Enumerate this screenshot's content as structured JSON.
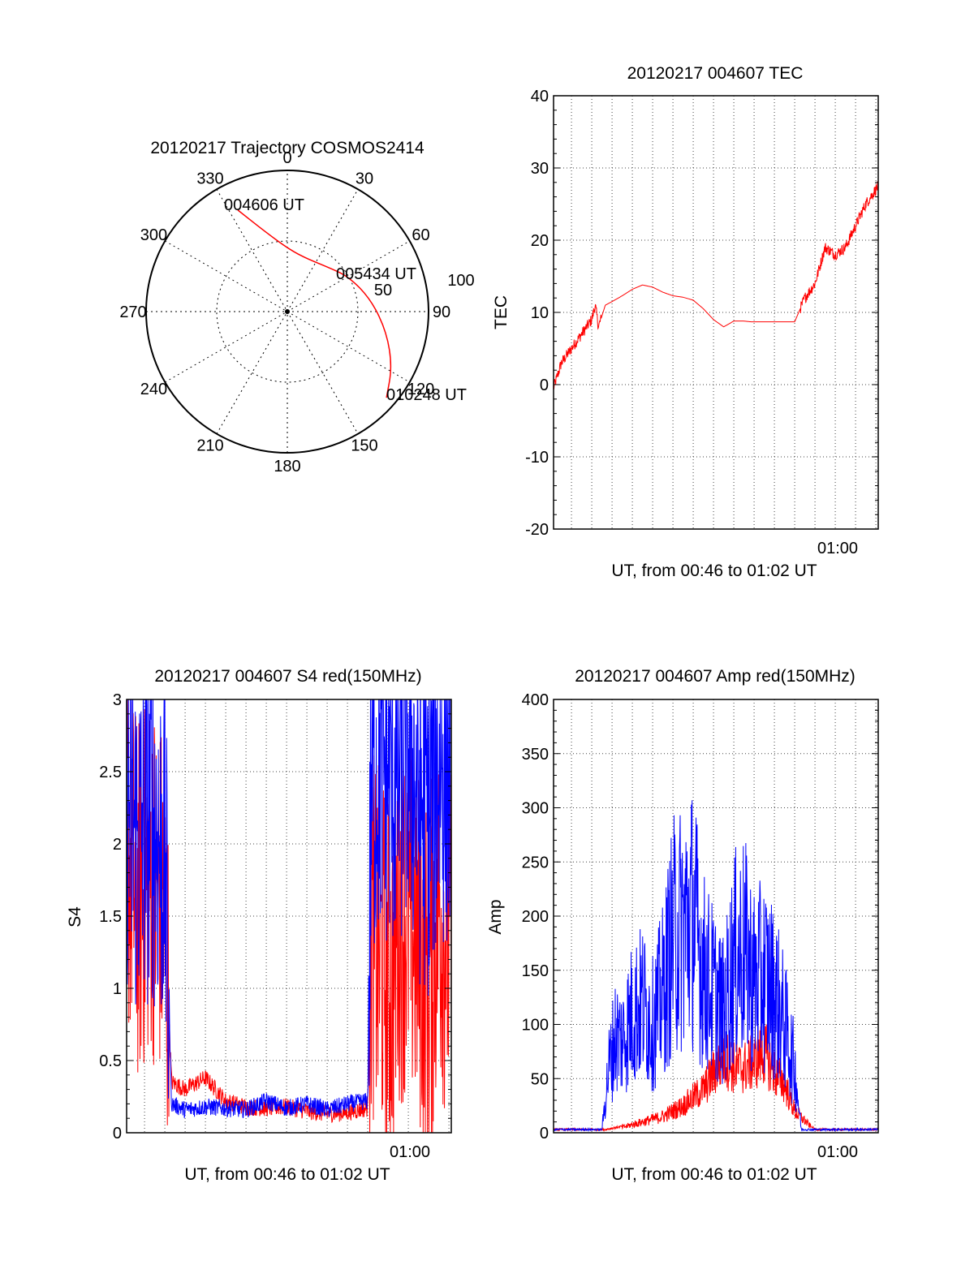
{
  "colors": {
    "red": "#ff0000",
    "blue": "#0000ff",
    "axis": "#000000",
    "grid": "#555555",
    "background": "#ffffff"
  },
  "panels": {
    "trajectory": {
      "title": "20120217 Trajectory COSMOS2414",
      "azimuth_labels": [
        "0",
        "30",
        "60",
        "90",
        "120",
        "150",
        "180",
        "210",
        "240",
        "270",
        "300",
        "330"
      ],
      "elevation_labels": [
        "50",
        "100"
      ],
      "start_label": "004606 UT",
      "mid_label": "005434 UT",
      "end_label": "010248 UT"
    },
    "tec": {
      "title": "20120217 004607 TEC",
      "ylabel": "TEC",
      "xlabel": "UT, from 00:46 to 01:02 UT",
      "xtick": "01:00",
      "yticks": [
        "40",
        "30",
        "20",
        "10",
        "0",
        "-10",
        "-20"
      ]
    },
    "s4": {
      "title": "20120217 004607 S4 red(150MHz)",
      "ylabel": "S4",
      "xlabel": "UT, from 00:46 to 01:02 UT",
      "xtick": "01:00",
      "yticks": [
        "3",
        "2.5",
        "2",
        "1.5",
        "1",
        "0.5",
        "0"
      ]
    },
    "amp": {
      "title": "20120217 004607 Amp red(150MHz)",
      "ylabel": "Amp",
      "xlabel": "UT, from 00:46 to 01:02 UT",
      "xtick": "01:00",
      "yticks": [
        "400",
        "350",
        "300",
        "250",
        "200",
        "150",
        "100",
        "50",
        "0"
      ]
    }
  },
  "chart_data": [
    {
      "type": "scatter",
      "subtype": "polar-trajectory",
      "title": "20120217 Trajectory COSMOS2414",
      "angle_unit": "azimuth degrees (0 at top, clockwise)",
      "radius_unit": "zenith distance, 0 at centre to 100 at edge",
      "series": [
        {
          "name": "",
          "color": "#ff0000",
          "points": [
            {
              "az": 334,
              "r": 80
            },
            {
              "az": 345,
              "r": 58
            },
            {
              "az": 2,
              "r": 44
            },
            {
              "az": 20,
              "r": 40
            },
            {
              "az": 40,
              "r": 42
            },
            {
              "az": 60,
              "r": 50
            },
            {
              "az": 82,
              "r": 60
            },
            {
              "az": 102,
              "r": 72
            },
            {
              "az": 118,
              "r": 84
            },
            {
              "az": 131,
              "r": 93
            }
          ]
        }
      ],
      "annotations": [
        {
          "text": "004606 UT",
          "az": 334,
          "r": 80
        },
        {
          "text": "005434 UT",
          "az": 60,
          "r": 50
        },
        {
          "text": "010248 UT",
          "az": 131,
          "r": 93
        }
      ]
    },
    {
      "type": "line",
      "title": "20120217 004607 TEC",
      "xlabel": "UT, from 00:46 to 01:02 UT",
      "ylabel": "TEC",
      "xlim": [
        "00:46:07",
        "01:02:07"
      ],
      "ylim": [
        -20,
        40
      ],
      "grid": true,
      "series": [
        {
          "name": "",
          "color": "#ff0000",
          "x": [
            "00:46:07",
            "00:46:30",
            "00:47:00",
            "00:47:30",
            "00:48:00",
            "00:48:10",
            "00:48:20",
            "00:48:40",
            "00:49:00",
            "00:49:30",
            "00:50:00",
            "00:50:30",
            "00:51:00",
            "00:51:30",
            "00:52:00",
            "00:52:30",
            "00:53:00",
            "00:53:30",
            "00:54:00",
            "00:54:30",
            "00:55:00",
            "00:55:30",
            "00:55:50",
            "00:56:30",
            "00:57:00",
            "00:58:00",
            "00:58:30",
            "00:59:00",
            "00:59:30",
            "01:00:00",
            "01:00:30",
            "01:01:00",
            "01:01:30",
            "01:02:07"
          ],
          "y": [
            -0.5,
            3,
            5,
            7,
            9,
            11,
            8,
            11,
            11.5,
            12.3,
            13.2,
            13.8,
            13.5,
            12.8,
            12.3,
            12.1,
            11.7,
            10.5,
            9,
            8,
            8.8,
            8.8,
            8.7,
            8.7,
            8.7,
            8.7,
            12,
            14,
            19,
            18,
            19,
            22,
            25,
            27.5
          ]
        }
      ]
    },
    {
      "type": "line",
      "title": "20120217 004607 S4 red(150MHz)",
      "xlabel": "UT, from 00:46 to 01:02 UT",
      "ylabel": "S4",
      "xlim": [
        "00:46:07",
        "01:02:07"
      ],
      "ylim": [
        0,
        3
      ],
      "grid": true,
      "series": [
        {
          "name": "",
          "color": "#ff0000",
          "x": [
            "00:46:07",
            "00:46:40",
            "00:47:20",
            "00:48:00",
            "00:48:20",
            "00:49:00",
            "00:50:00",
            "00:51:00",
            "00:52:00",
            "00:53:00",
            "00:54:00",
            "00:55:00",
            "00:56:00",
            "00:57:00",
            "00:58:00",
            "00:58:10",
            "00:58:40",
            "00:59:10",
            "00:59:30",
            "01:00:00",
            "01:00:30",
            "01:01:00",
            "01:01:30",
            "01:02:07"
          ],
          "y": [
            2.0,
            1.6,
            1.8,
            1.5,
            0.35,
            0.3,
            0.38,
            0.22,
            0.18,
            0.17,
            0.18,
            0.15,
            0.13,
            0.14,
            0.17,
            1.4,
            1.2,
            1.0,
            1.5,
            1.5,
            1.3,
            1.0,
            1.6,
            1.2
          ]
        },
        {
          "name": "",
          "color": "#0000ff",
          "x": [
            "00:46:07",
            "00:46:40",
            "00:47:20",
            "00:48:00",
            "00:48:20",
            "00:49:00",
            "00:50:00",
            "00:51:00",
            "00:52:00",
            "00:53:00",
            "00:54:00",
            "00:55:00",
            "00:56:00",
            "00:57:00",
            "00:58:00",
            "00:58:10",
            "00:58:40",
            "00:59:10",
            "00:59:30",
            "01:00:00",
            "01:00:30",
            "01:01:00",
            "01:01:30",
            "01:02:07"
          ],
          "y": [
            2.3,
            2.0,
            2.2,
            1.9,
            0.2,
            0.16,
            0.18,
            0.17,
            0.16,
            0.22,
            0.17,
            0.2,
            0.16,
            0.2,
            0.22,
            2.4,
            2.6,
            2.5,
            2.5,
            2.7,
            2.3,
            2.2,
            2.6,
            2.5
          ]
        }
      ]
    },
    {
      "type": "line",
      "title": "20120217 004607 Amp red(150MHz)",
      "xlabel": "UT, from 00:46 to 01:02 UT",
      "ylabel": "Amp",
      "xlim": [
        "00:46:07",
        "01:02:07"
      ],
      "ylim": [
        0,
        400
      ],
      "grid": true,
      "series": [
        {
          "name": "",
          "color": "#ff0000",
          "x": [
            "00:46:07",
            "00:48:40",
            "00:49:30",
            "00:50:30",
            "00:51:30",
            "00:52:30",
            "00:53:30",
            "00:54:00",
            "00:54:30",
            "00:55:00",
            "00:55:30",
            "00:56:00",
            "00:56:30",
            "00:57:00",
            "00:57:30",
            "00:58:00",
            "00:59:00",
            "01:00:00",
            "01:02:07"
          ],
          "y": [
            2,
            2,
            5,
            10,
            15,
            25,
            40,
            55,
            70,
            60,
            60,
            65,
            75,
            55,
            45,
            20,
            2,
            2,
            2
          ]
        },
        {
          "name": "",
          "color": "#0000ff",
          "x": [
            "00:46:07",
            "00:48:30",
            "00:48:50",
            "00:49:10",
            "00:49:30",
            "00:50:00",
            "00:50:30",
            "00:51:00",
            "00:51:30",
            "00:52:00",
            "00:52:30",
            "00:53:00",
            "00:53:30",
            "00:54:00",
            "00:54:30",
            "00:55:00",
            "00:55:30",
            "00:56:00",
            "00:56:30",
            "00:57:00",
            "00:57:30",
            "00:58:00",
            "00:58:20",
            "00:59:00",
            "01:02:07"
          ],
          "y": [
            2,
            2,
            60,
            90,
            85,
            110,
            120,
            100,
            130,
            180,
            190,
            200,
            150,
            130,
            110,
            160,
            170,
            140,
            145,
            130,
            100,
            60,
            2,
            2,
            2
          ]
        }
      ]
    }
  ]
}
